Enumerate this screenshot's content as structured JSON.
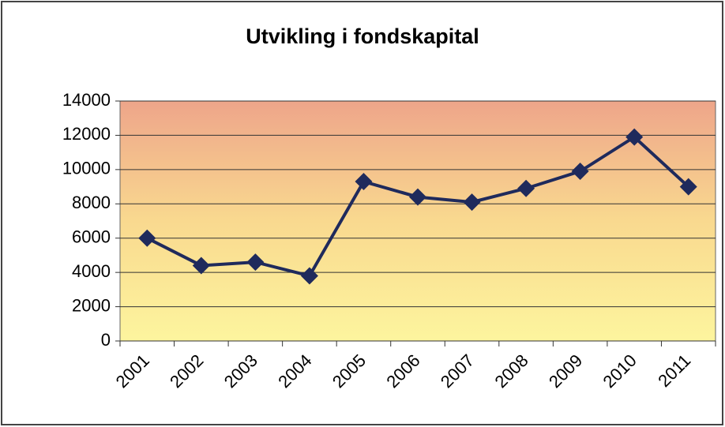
{
  "chart_data": {
    "type": "line",
    "title": "Utvikling i fondskapital",
    "categories": [
      "2001",
      "2002",
      "2003",
      "2004",
      "2005",
      "2006",
      "2007",
      "2008",
      "2009",
      "2010",
      "2011"
    ],
    "values": [
      6000,
      4400,
      4600,
      3800,
      9300,
      8400,
      8100,
      8900,
      9900,
      11900,
      9000
    ],
    "color": "#1f2a5c",
    "ylim": [
      0,
      14000
    ],
    "yticks": [
      0,
      2000,
      4000,
      6000,
      8000,
      10000,
      12000,
      14000
    ],
    "grid": true
  }
}
